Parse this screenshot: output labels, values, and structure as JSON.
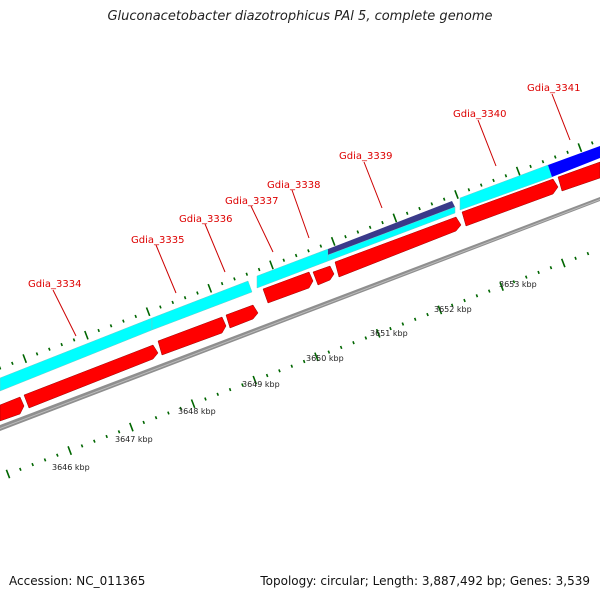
{
  "title": "Gluconacetobacter diazotrophicus PAl 5, complete genome",
  "footer": {
    "accession": "Accession: NC_011365",
    "topology": "Topology: circular; Length: 3,887,492 bp; Genes: 3,539"
  },
  "colors": {
    "cds_forward": "#ff0000",
    "cds_reverse": "#00ffff",
    "cds_highlight_dark": "#3a3a8a",
    "cds_highlight_blue": "#0000ff",
    "backbone": "#888888",
    "tick": "#006600",
    "label": "#dd0000"
  },
  "gene_labels": [
    "Gdia_3334",
    "Gdia_3335",
    "Gdia_3336",
    "Gdia_3337",
    "Gdia_3338",
    "Gdia_3339",
    "Gdia_3340",
    "Gdia_3341"
  ],
  "kbp_labels": [
    "3646 kbp",
    "3647 kbp",
    "3648 kbp",
    "3649 kbp",
    "3650 kbp",
    "3651 kbp",
    "3652 kbp",
    "3653 kbp"
  ]
}
